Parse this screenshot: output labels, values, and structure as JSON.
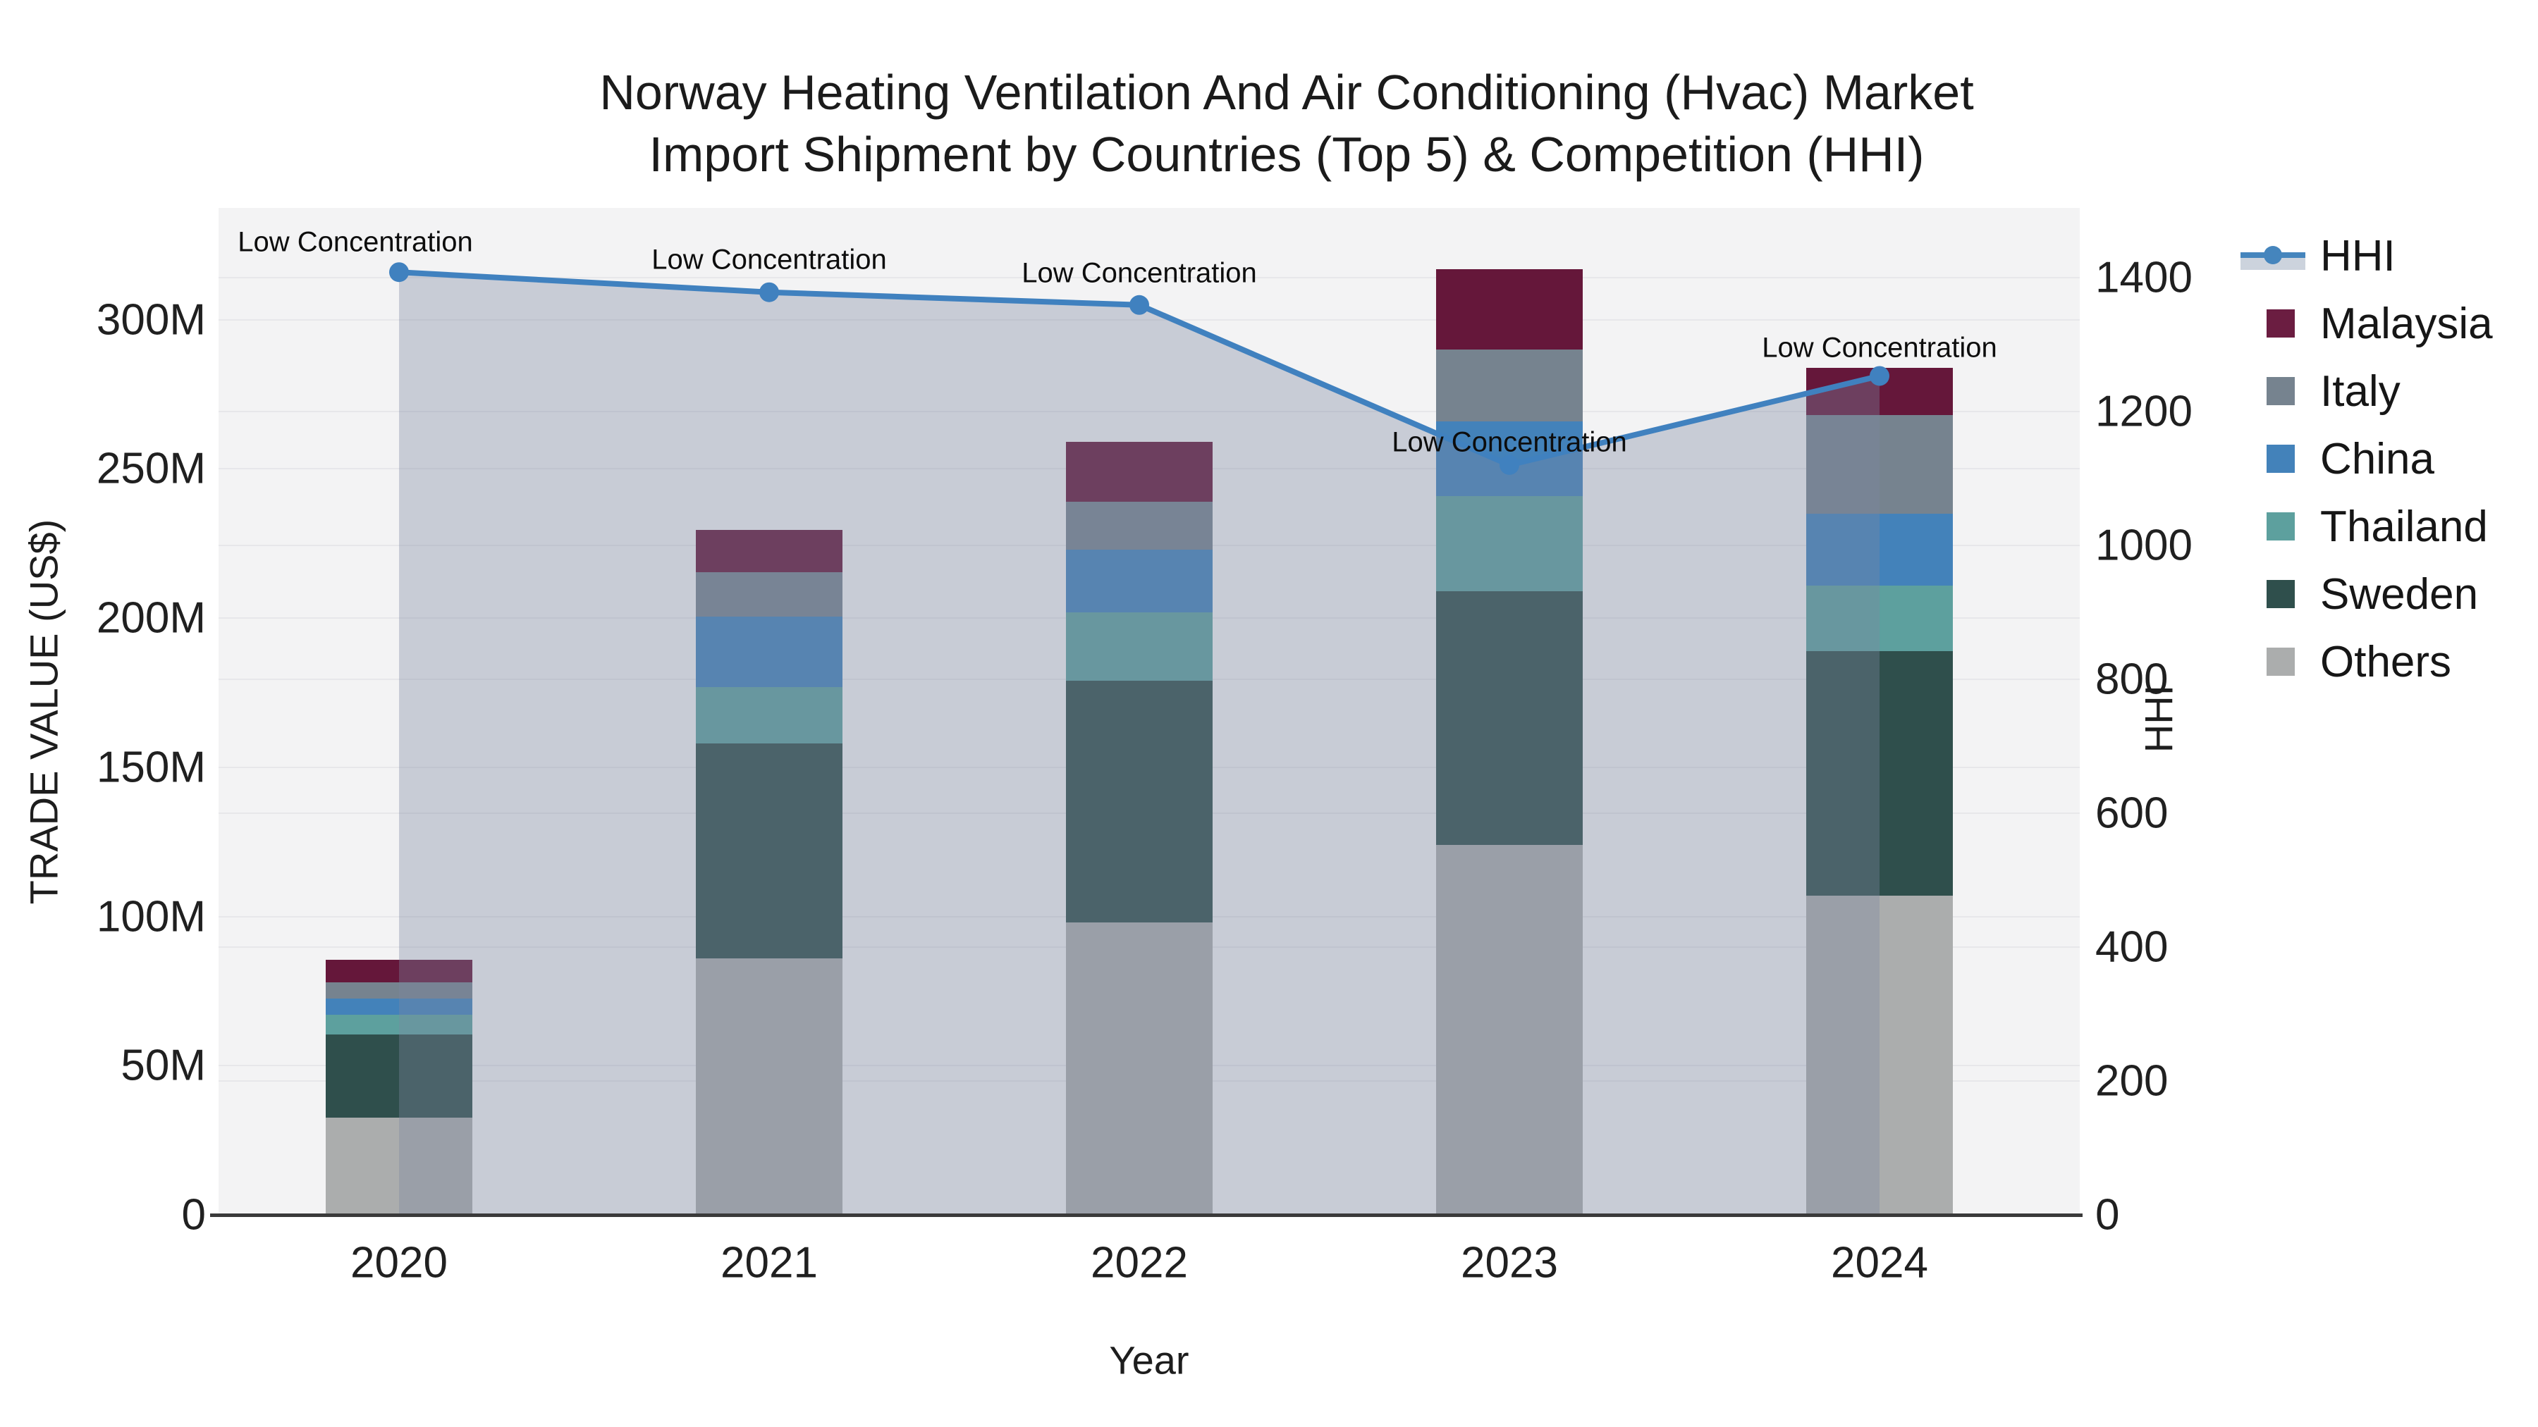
{
  "title": {
    "line1": "Norway Heating Ventilation And Air Conditioning (Hvac) Market",
    "line2": "Import Shipment by Countries (Top 5) & Competition (HHI)"
  },
  "legend": {
    "items": [
      {
        "label": "HHI",
        "type": "line",
        "color": "#4585bd"
      },
      {
        "label": "Malaysia",
        "type": "swatch",
        "color": "#6b1d41"
      },
      {
        "label": "Italy",
        "type": "swatch",
        "color": "#76838f"
      },
      {
        "label": "China",
        "type": "swatch",
        "color": "#4382ba"
      },
      {
        "label": "Thailand",
        "type": "swatch",
        "color": "#5da09e"
      },
      {
        "label": "Sweden",
        "type": "swatch",
        "color": "#2f4f4c"
      },
      {
        "label": "Others",
        "type": "swatch",
        "color": "#abadad"
      }
    ]
  },
  "chart_data": {
    "type": "bar+line",
    "title": "Norway Heating Ventilation And Air Conditioning (Hvac) Market Import Shipment by Countries (Top 5) & Competition (HHI)",
    "categories": [
      "2020",
      "2021",
      "2022",
      "2023",
      "2024"
    ],
    "stack_unit": "US$ millions",
    "series": [
      {
        "name": "Others",
        "color": "#abadad",
        "values": [
          32.5,
          86,
          98,
          124,
          107
        ]
      },
      {
        "name": "Sweden",
        "color": "#2f4f4c",
        "values": [
          28,
          72,
          81,
          85,
          82
        ]
      },
      {
        "name": "Thailand",
        "color": "#5da09e",
        "values": [
          6.5,
          19,
          23,
          32,
          22
        ]
      },
      {
        "name": "China",
        "color": "#4382ba",
        "values": [
          5.5,
          23.5,
          21,
          25,
          24
        ]
      },
      {
        "name": "Italy",
        "color": "#76838f",
        "values": [
          5.5,
          15,
          16,
          24,
          33
        ]
      },
      {
        "name": "Malaysia",
        "color": "#65173a",
        "values": [
          7.5,
          14,
          20,
          27,
          16
        ]
      }
    ],
    "totals": [
      85.5,
      229.5,
      259,
      317,
      284
    ],
    "line": {
      "name": "HHI",
      "color": "#4081bf",
      "fill": "rgba(125,136,160,0.36)",
      "values": [
        1408,
        1378,
        1359,
        1120,
        1253
      ],
      "point_labels": [
        "Low Concentration",
        "Low Concentration",
        "Low Concentration",
        "Low Concentration",
        "Low Concentration"
      ]
    },
    "y_left": {
      "label": "TRADE VALUE (US$)",
      "range": [
        0,
        337.5
      ],
      "ticks": [
        0,
        50,
        100,
        150,
        200,
        250,
        300
      ],
      "tick_labels": [
        "0",
        "50M",
        "100M",
        "150M",
        "200M",
        "250M",
        "300M"
      ]
    },
    "y_right": {
      "label": "HHI",
      "range": [
        0,
        1504
      ],
      "ticks": [
        0,
        200,
        400,
        600,
        800,
        1000,
        1200,
        1400
      ],
      "tick_labels": [
        "0",
        "200",
        "400",
        "600",
        "800",
        "1000",
        "1200",
        "1400"
      ]
    },
    "x": {
      "label": "Year"
    },
    "grid": true,
    "legend_position": "right",
    "plot_bg": "#f3f3f4"
  }
}
